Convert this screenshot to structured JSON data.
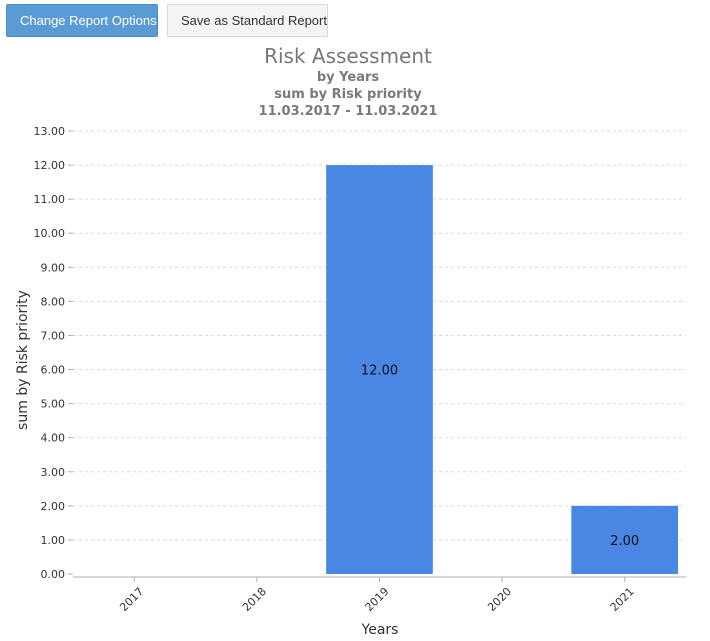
{
  "toolbar": {
    "change_options_label": "Change Report Options",
    "save_standard_label": "Save as Standard Report"
  },
  "colors": {
    "bar": "#4a87e5",
    "primary_button": "#5b9bd5"
  },
  "chart_data": {
    "type": "bar",
    "title": "Risk Assessment",
    "subtitles": [
      "by Years",
      "sum by Risk priority",
      "11.03.2017 - 11.03.2021"
    ],
    "xlabel": "Years",
    "ylabel": "sum by Risk priority",
    "categories": [
      "2017",
      "2018",
      "2019",
      "2020",
      "2021"
    ],
    "values": [
      0,
      0,
      12,
      0,
      2
    ],
    "data_labels": [
      "",
      "",
      "12.00",
      "",
      "2.00"
    ],
    "ylim": [
      0,
      13
    ],
    "yticks": [
      "0.00",
      "1.00",
      "2.00",
      "3.00",
      "4.00",
      "5.00",
      "6.00",
      "7.00",
      "8.00",
      "9.00",
      "10.00",
      "11.00",
      "12.00",
      "13.00"
    ],
    "grid": true,
    "legend": false
  }
}
